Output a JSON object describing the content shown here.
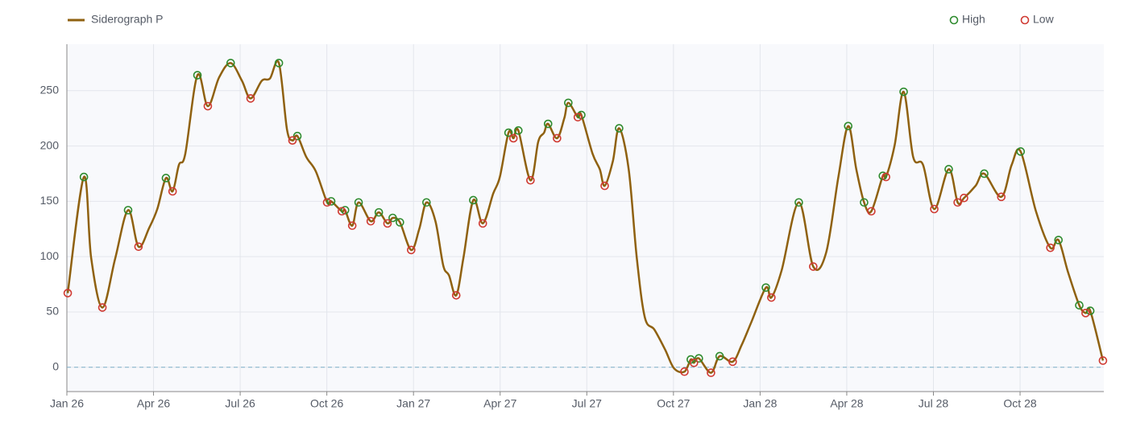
{
  "chart_data": {
    "type": "line",
    "xlim": [
      0,
      35.9
    ],
    "ylim": [
      -22,
      292
    ],
    "xticks": [
      {
        "value": 0,
        "label": "Jan 26"
      },
      {
        "value": 3,
        "label": "Apr 26"
      },
      {
        "value": 6,
        "label": "Jul 26"
      },
      {
        "value": 9,
        "label": "Oct 26"
      },
      {
        "value": 12,
        "label": "Jan 27"
      },
      {
        "value": 15,
        "label": "Apr 27"
      },
      {
        "value": 18,
        "label": "Jul 27"
      },
      {
        "value": 21,
        "label": "Oct 27"
      },
      {
        "value": 24,
        "label": "Jan 28"
      },
      {
        "value": 27,
        "label": "Apr 28"
      },
      {
        "value": 30,
        "label": "Jul 28"
      },
      {
        "value": 33,
        "label": "Oct 28"
      }
    ],
    "yticks": [
      0,
      50,
      100,
      150,
      200,
      250
    ],
    "grid": true,
    "hline": 0,
    "series": [
      {
        "name": "Siderograph P",
        "color": "#8f6110",
        "kind": "line",
        "x": [
          0.03,
          0.59,
          0.84,
          1.23,
          1.67,
          2.12,
          2.48,
          2.85,
          3.13,
          3.43,
          3.66,
          3.88,
          4.1,
          4.52,
          4.88,
          5.27,
          5.67,
          6.06,
          6.36,
          6.75,
          7.03,
          7.34,
          7.62,
          7.81,
          7.98,
          8.29,
          8.62,
          9.01,
          9.15,
          9.52,
          9.63,
          9.88,
          10.1,
          10.52,
          10.8,
          11.1,
          11.28,
          11.53,
          11.92,
          12.2,
          12.45,
          12.76,
          13.03,
          13.23,
          13.48,
          13.73,
          14.07,
          14.4,
          14.76,
          14.99,
          15.29,
          15.46,
          15.63,
          16.05,
          16.32,
          16.52,
          16.66,
          16.97,
          17.22,
          17.36,
          17.69,
          17.81,
          18.2,
          18.45,
          18.62,
          18.9,
          19.12,
          19.45,
          19.73,
          20.01,
          20.34,
          20.71,
          21.02,
          21.38,
          21.6,
          21.71,
          21.88,
          22.3,
          22.6,
          23.05,
          23.36,
          23.7,
          24.2,
          24.39,
          24.75,
          25.34,
          25.84,
          26.29,
          26.71,
          27.05,
          27.33,
          27.6,
          27.85,
          28.25,
          28.36,
          28.66,
          28.97,
          29.3,
          29.64,
          30.03,
          30.53,
          30.84,
          31.06,
          31.46,
          31.76,
          32.35,
          32.71,
          33.02,
          33.55,
          34.05,
          34.33,
          34.66,
          35.05,
          35.27,
          35.43,
          35.87
        ],
        "values": [
          67,
          172,
          99,
          54,
          98,
          142,
          109,
          126,
          143,
          171,
          159,
          183,
          193,
          264,
          236,
          262,
          275,
          259,
          243,
          259,
          261,
          275,
          215,
          205,
          209,
          190,
          177,
          149,
          150,
          141,
          142,
          128,
          149,
          132,
          140,
          130,
          135,
          131,
          106,
          125,
          149,
          132,
          92,
          83,
          65,
          99,
          151,
          130,
          157,
          172,
          212,
          207,
          214,
          169,
          204,
          212,
          220,
          207,
          225,
          239,
          226,
          228,
          193,
          179,
          164,
          186,
          216,
          179,
          99,
          45,
          34,
          16,
          -1,
          -4,
          7,
          4,
          8,
          -5,
          10,
          5,
          20,
          41,
          72,
          63,
          88,
          149,
          91,
          104,
          172,
          218,
          179,
          149,
          141,
          173,
          172,
          201,
          249,
          190,
          183,
          143,
          179,
          149,
          153,
          164,
          175,
          154,
          183,
          195,
          141,
          108,
          115,
          86,
          56,
          49,
          51,
          6
        ]
      },
      {
        "name": "High",
        "color": "#2e8b2e",
        "kind": "marker",
        "x": [
          0.59,
          2.12,
          3.43,
          4.52,
          5.67,
          7.34,
          7.98,
          9.15,
          9.63,
          10.1,
          10.8,
          11.28,
          11.53,
          12.45,
          14.07,
          15.29,
          15.63,
          16.66,
          17.36,
          17.81,
          19.12,
          21.6,
          21.88,
          22.6,
          24.2,
          25.34,
          27.05,
          27.6,
          28.25,
          28.97,
          30.53,
          31.76,
          33.02,
          34.33,
          35.05,
          35.43
        ],
        "values": [
          172,
          142,
          171,
          264,
          275,
          275,
          209,
          150,
          142,
          149,
          140,
          135,
          131,
          149,
          151,
          212,
          214,
          220,
          239,
          228,
          216,
          7,
          8,
          10,
          72,
          149,
          218,
          149,
          173,
          249,
          179,
          175,
          195,
          115,
          56,
          51
        ]
      },
      {
        "name": "Low",
        "color": "#d03a32",
        "kind": "marker",
        "x": [
          0.03,
          1.23,
          2.48,
          3.66,
          4.88,
          6.36,
          7.81,
          9.01,
          9.52,
          9.88,
          10.52,
          11.1,
          11.92,
          13.48,
          14.4,
          15.46,
          16.05,
          16.97,
          17.69,
          18.62,
          21.38,
          21.71,
          22.3,
          23.05,
          24.39,
          25.84,
          27.85,
          28.36,
          30.03,
          30.84,
          31.06,
          32.35,
          34.05,
          35.27,
          35.87
        ],
        "values": [
          67,
          54,
          109,
          159,
          236,
          243,
          205,
          149,
          141,
          128,
          132,
          130,
          106,
          65,
          130,
          207,
          169,
          207,
          226,
          164,
          -4,
          4,
          -5,
          5,
          63,
          91,
          141,
          172,
          143,
          149,
          153,
          154,
          108,
          49,
          6
        ]
      }
    ]
  }
}
